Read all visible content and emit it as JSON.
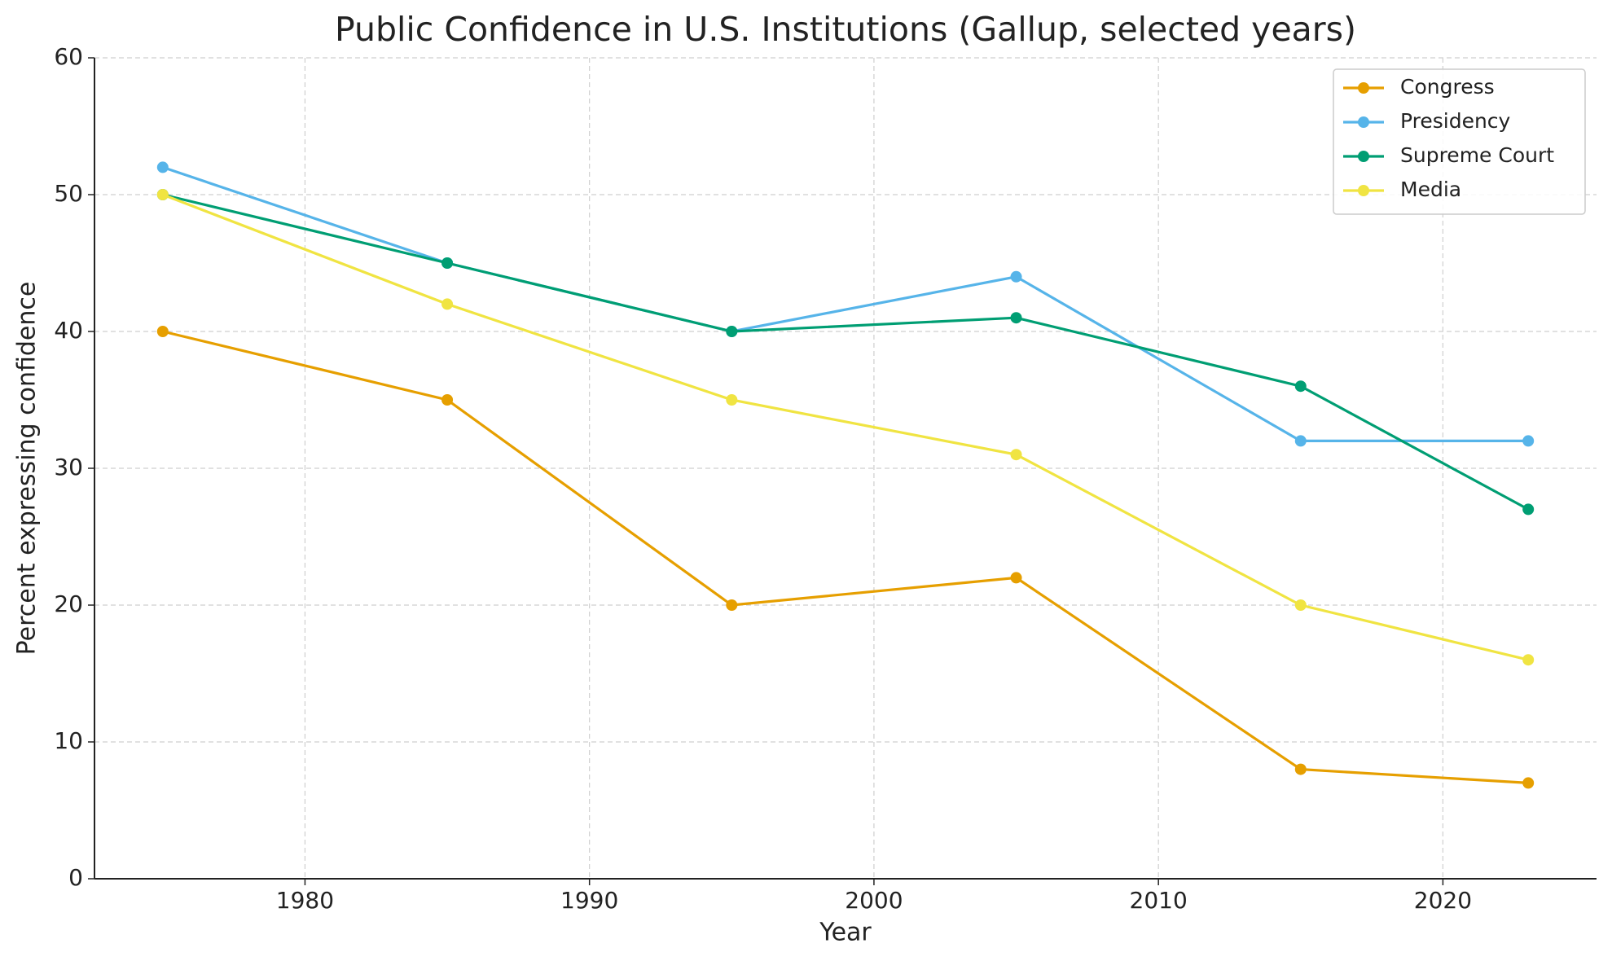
{
  "chart_data": {
    "type": "line",
    "title": "Public Confidence in U.S. Institutions (Gallup, selected years)",
    "xlabel": "Year",
    "ylabel": "Percent expressing confidence",
    "x": [
      1975,
      1985,
      1995,
      2005,
      2015,
      2023
    ],
    "series": [
      {
        "name": "Congress",
        "color": "#E69F00",
        "values": [
          40,
          35,
          20,
          22,
          8,
          7
        ]
      },
      {
        "name": "Presidency",
        "color": "#56B4E9",
        "values": [
          52,
          45,
          40,
          44,
          32,
          32
        ]
      },
      {
        "name": "Supreme Court",
        "color": "#009E73",
        "values": [
          50,
          45,
          40,
          41,
          36,
          27
        ]
      },
      {
        "name": "Media",
        "color": "#F0E442",
        "values": [
          50,
          42,
          35,
          31,
          20,
          16
        ]
      }
    ],
    "xlim": [
      1972.6,
      2025.4
    ],
    "xticks": [
      1980,
      1990,
      2000,
      2010,
      2020
    ],
    "ylim": [
      0,
      60
    ],
    "yticks": [
      0,
      10,
      20,
      30,
      40,
      50,
      60
    ],
    "grid": true,
    "legend": "upper right"
  }
}
